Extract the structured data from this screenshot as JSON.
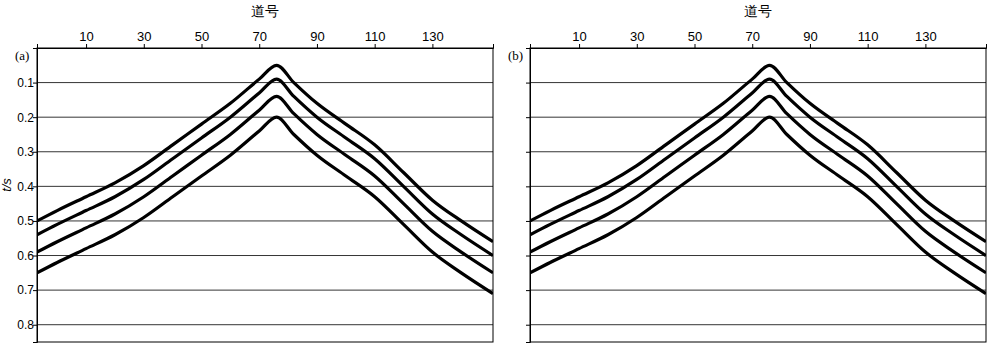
{
  "chart_data": [
    {
      "type": "line",
      "title": "(a)",
      "x_label": "道号",
      "y_label": "t/s",
      "x": [
        -7,
        0,
        10,
        20,
        30,
        40,
        50,
        60,
        70,
        76,
        82,
        90,
        100,
        110,
        120,
        130,
        140,
        151
      ],
      "series": [
        {
          "color": "#000000",
          "values": [
            0.5,
            0.47,
            0.43,
            0.39,
            0.34,
            0.28,
            0.22,
            0.16,
            0.09,
            0.05,
            0.1,
            0.16,
            0.22,
            0.28,
            0.36,
            0.44,
            0.5,
            0.56
          ]
        },
        {
          "color": "#000000",
          "values": [
            0.54,
            0.51,
            0.47,
            0.43,
            0.38,
            0.32,
            0.26,
            0.2,
            0.13,
            0.09,
            0.14,
            0.2,
            0.26,
            0.32,
            0.4,
            0.48,
            0.54,
            0.6
          ]
        },
        {
          "color": "#000000",
          "values": [
            0.59,
            0.56,
            0.52,
            0.48,
            0.43,
            0.37,
            0.31,
            0.25,
            0.18,
            0.14,
            0.19,
            0.25,
            0.31,
            0.37,
            0.45,
            0.53,
            0.59,
            0.65
          ]
        },
        {
          "color": "#000000",
          "values": [
            0.65,
            0.62,
            0.58,
            0.54,
            0.49,
            0.43,
            0.37,
            0.31,
            0.24,
            0.2,
            0.25,
            0.31,
            0.37,
            0.43,
            0.51,
            0.59,
            0.65,
            0.71
          ]
        }
      ],
      "xlim": [
        -7,
        151
      ],
      "ylim": [
        0,
        0.85
      ],
      "xticks": [
        10,
        30,
        50,
        70,
        90,
        110,
        130
      ],
      "yticks": [
        0.1,
        0.2,
        0.3,
        0.4,
        0.5,
        0.6,
        0.7,
        0.8
      ],
      "grid": true
    },
    {
      "type": "line",
      "title": "(b)",
      "x_label": "道号",
      "x": [
        -7,
        0,
        10,
        20,
        30,
        40,
        50,
        60,
        70,
        76,
        82,
        90,
        100,
        110,
        120,
        130,
        140,
        151
      ],
      "series": [
        {
          "color": "#000000",
          "values": [
            0.5,
            0.47,
            0.43,
            0.39,
            0.34,
            0.28,
            0.22,
            0.16,
            0.09,
            0.05,
            0.1,
            0.16,
            0.22,
            0.28,
            0.36,
            0.44,
            0.5,
            0.56
          ]
        },
        {
          "color": "#000000",
          "values": [
            0.54,
            0.51,
            0.47,
            0.43,
            0.38,
            0.32,
            0.26,
            0.2,
            0.13,
            0.09,
            0.14,
            0.2,
            0.26,
            0.32,
            0.4,
            0.48,
            0.54,
            0.6
          ]
        },
        {
          "color": "#000000",
          "values": [
            0.59,
            0.56,
            0.52,
            0.48,
            0.43,
            0.37,
            0.31,
            0.25,
            0.18,
            0.14,
            0.19,
            0.25,
            0.31,
            0.37,
            0.45,
            0.53,
            0.59,
            0.65
          ]
        },
        {
          "color": "#000000",
          "values": [
            0.65,
            0.62,
            0.58,
            0.54,
            0.49,
            0.43,
            0.37,
            0.31,
            0.24,
            0.2,
            0.25,
            0.31,
            0.37,
            0.43,
            0.51,
            0.59,
            0.65,
            0.71
          ]
        }
      ],
      "xlim": [
        -7,
        151
      ],
      "ylim": [
        0,
        0.85
      ],
      "xticks": [
        10,
        30,
        50,
        70,
        90,
        110,
        130
      ],
      "yticks": [
        0.1,
        0.2,
        0.3,
        0.4,
        0.5,
        0.6,
        0.7,
        0.8
      ],
      "grid": true,
      "tick_labels": "x"
    }
  ]
}
